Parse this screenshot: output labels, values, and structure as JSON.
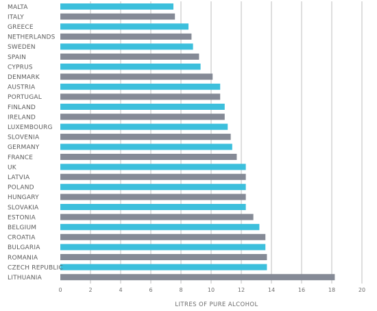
{
  "chart_data": {
    "type": "bar",
    "orientation": "horizontal",
    "xlabel": "LITRES OF PURE ALCOHOL",
    "ylabel": "",
    "xlim": [
      0,
      20
    ],
    "xticks": [
      0,
      2,
      4,
      6,
      8,
      10,
      12,
      14,
      16,
      18,
      20
    ],
    "grid": "vertical",
    "colors": {
      "blue": "#3cbfdc",
      "grey": "#858a96"
    },
    "categories": [
      "MALTA",
      "ITALY",
      "GREECE",
      "NETHERLANDS",
      "SWEDEN",
      "SPAIN",
      "CYPRUS",
      "DENMARK",
      "AUSTRIA",
      "PORTUGAL",
      "FINLAND",
      "IRELAND",
      "LUXEMBOURG",
      "SLOVENIA",
      "GERMANY",
      "FRANCE",
      "UK",
      "LATVIA",
      "POLAND",
      "HUNGARY",
      "SLOVAKIA",
      "ESTONIA",
      "BELGIUM",
      "CROATIA",
      "BULGARIA",
      "ROMANIA",
      "CZECH REPUBLIC",
      "LITHUANIA"
    ],
    "values": [
      7.5,
      7.6,
      8.5,
      8.7,
      8.8,
      9.2,
      9.3,
      10.1,
      10.6,
      10.6,
      10.9,
      10.9,
      11.1,
      11.3,
      11.4,
      11.7,
      12.3,
      12.3,
      12.3,
      12.3,
      12.3,
      12.8,
      13.2,
      13.6,
      13.6,
      13.7,
      13.7,
      18.2
    ],
    "bar_colors": [
      "blue",
      "grey",
      "blue",
      "grey",
      "blue",
      "grey",
      "blue",
      "grey",
      "blue",
      "grey",
      "blue",
      "grey",
      "blue",
      "grey",
      "blue",
      "grey",
      "blue",
      "grey",
      "blue",
      "grey",
      "blue",
      "grey",
      "blue",
      "grey",
      "blue",
      "grey",
      "blue",
      "grey"
    ]
  }
}
